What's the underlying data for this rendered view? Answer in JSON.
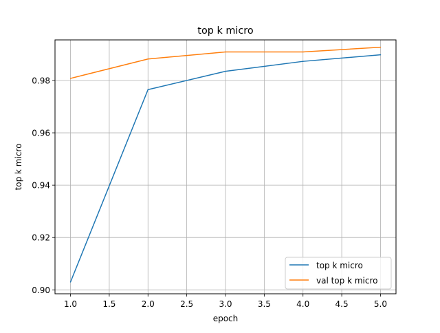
{
  "chart_data": {
    "type": "line",
    "title": "top k micro",
    "xlabel": "epoch",
    "ylabel": "top k micro",
    "xlim": [
      0.8,
      5.2
    ],
    "ylim": [
      0.8985,
      0.9955
    ],
    "xticks": [
      1.0,
      1.5,
      2.0,
      2.5,
      3.0,
      3.5,
      4.0,
      4.5,
      5.0
    ],
    "xtick_labels": [
      "1.0",
      "1.5",
      "2.0",
      "2.5",
      "3.0",
      "3.5",
      "4.0",
      "4.5",
      "5.0"
    ],
    "yticks": [
      0.9,
      0.92,
      0.94,
      0.96,
      0.98
    ],
    "ytick_labels": [
      "0.90",
      "0.92",
      "0.94",
      "0.96",
      "0.98"
    ],
    "grid": true,
    "legend_position": "lower right",
    "series": [
      {
        "name": "top k micro",
        "color": "#1f77b4",
        "x": [
          1,
          2,
          3,
          4,
          5
        ],
        "y": [
          0.903,
          0.9765,
          0.9835,
          0.9873,
          0.9898
        ]
      },
      {
        "name": "val top k micro",
        "color": "#ff7f0e",
        "x": [
          1,
          2,
          3,
          4,
          5
        ],
        "y": [
          0.9808,
          0.9882,
          0.9909,
          0.9909,
          0.9927
        ]
      }
    ]
  }
}
